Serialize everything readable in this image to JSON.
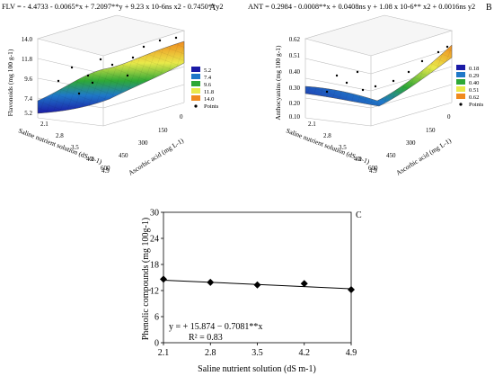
{
  "chart_data": [
    {
      "type": "surface3d",
      "panel_label": "A",
      "equation": "FLV = - 4.4733 - 0.0065*x + 7.2097**y + 9.23 x 10-6ns x2 - 0.7450**y2",
      "zlabel": "Flavonoids (mg 100 g-1)",
      "xlabel": "Ascorbic acid (mg L-1)",
      "ylabel": "Saline nutrient solution (dS m-1)",
      "z_ticks": [
        "5.2",
        "7.4",
        "9.6",
        "11.8",
        "14.0"
      ],
      "x_ticks": [
        "0",
        "150",
        "300",
        "450",
        "600"
      ],
      "y_ticks": [
        "2.1",
        "2.8",
        "3.5",
        "4.2",
        "4.9"
      ],
      "legend": {
        "entries": [
          "5.2",
          "7.4",
          "9.6",
          "11.8",
          "14.0",
          "Points"
        ],
        "colors": [
          "#1a1aa6",
          "#1f78c8",
          "#2ea836",
          "#e9e94a",
          "#f08a1e"
        ]
      }
    },
    {
      "type": "surface3d",
      "panel_label": "B",
      "equation": "ANT = 0.2984 - 0.0008**x + 0.0408ns y + 1.08 x 10-6** x2 + 0.0016ns y2",
      "zlabel": "Anthocyanins (mg 100 g-1)",
      "xlabel": "Ascorbic acid (mg L-1)",
      "ylabel": "Saline nutrient solution (dS m-1)",
      "z_ticks": [
        "0.10",
        "0.20",
        "0.30",
        "0.40",
        "0.51",
        "0.62"
      ],
      "x_ticks": [
        "0",
        "150",
        "300",
        "450",
        "600"
      ],
      "y_ticks": [
        "2.1",
        "2.8",
        "3.5",
        "4.2",
        "4.9"
      ],
      "legend": {
        "entries": [
          "0.18",
          "0.29",
          "0.40",
          "0.51",
          "0.62",
          "Points"
        ],
        "colors": [
          "#1a1aa6",
          "#1f78c8",
          "#2ea836",
          "#e9e94a",
          "#f08a1e"
        ]
      }
    },
    {
      "type": "line",
      "panel_label": "C",
      "xlabel": "Saline nutrient solution (dS m-1)",
      "ylabel": "Phenolic compounds (mg 100g-1)",
      "x": [
        2.1,
        2.8,
        3.5,
        4.2,
        4.9
      ],
      "x_ticks": [
        "2.1",
        "2.8",
        "3.5",
        "4.2",
        "4.9"
      ],
      "y_ticks": [
        "0",
        "6",
        "12",
        "18",
        "24",
        "30"
      ],
      "xlim": [
        2.1,
        4.9
      ],
      "ylim": [
        0,
        30
      ],
      "series": [
        {
          "values": [
            14.6,
            13.9,
            13.3,
            13.6,
            12.2
          ],
          "marker": "diamond"
        }
      ],
      "fit": {
        "intercept": 15.874,
        "slope": -0.7081
      },
      "annotation": {
        "equation": "y = + 15.874 − 0.7081**x",
        "r2": "R² = 0.83"
      }
    }
  ]
}
